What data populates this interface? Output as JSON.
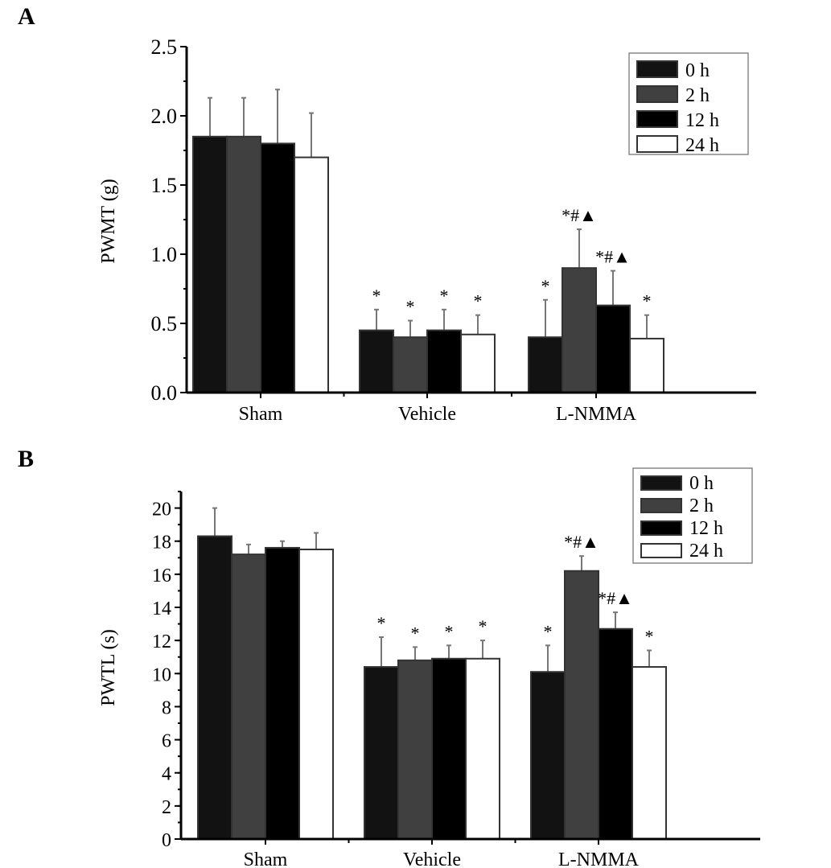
{
  "chart_data": [
    {
      "panel_label": "A",
      "type": "bar",
      "title": "",
      "xlabel": "",
      "ylabel": "PWMT (g)",
      "ylim": [
        0,
        2.5
      ],
      "yticks": [
        "0.0",
        "0.5",
        "1.0",
        "1.5",
        "2.0",
        "2.5"
      ],
      "ytick_values": [
        0,
        0.5,
        1.0,
        1.5,
        2.0,
        2.5
      ],
      "categories": [
        "Sham",
        "Vehicle",
        "L-NMMA"
      ],
      "legend_position": "top-right",
      "series": [
        {
          "name": "0 h",
          "color": "#121212",
          "values": [
            1.85,
            0.45,
            0.4
          ],
          "error_top": [
            2.13,
            0.6,
            0.67
          ],
          "annotations": [
            "",
            "*",
            "*"
          ]
        },
        {
          "name": "2 h",
          "color": "#404040",
          "values": [
            1.85,
            0.4,
            0.9
          ],
          "error_top": [
            2.13,
            0.52,
            1.18
          ],
          "annotations": [
            "",
            "*",
            "*#▲"
          ]
        },
        {
          "name": "12 h",
          "color": "#000000",
          "values": [
            1.8,
            0.45,
            0.63
          ],
          "error_top": [
            2.19,
            0.6,
            0.88
          ],
          "annotations": [
            "",
            "*",
            "*#▲"
          ]
        },
        {
          "name": "24 h",
          "color": "#ffffff",
          "values": [
            1.7,
            0.42,
            0.39
          ],
          "error_top": [
            2.02,
            0.56,
            0.56
          ],
          "annotations": [
            "",
            "*",
            "*"
          ]
        }
      ]
    },
    {
      "panel_label": "B",
      "type": "bar",
      "title": "",
      "xlabel": "",
      "ylabel": "PWTL (s)",
      "ylim": [
        0,
        21
      ],
      "yticks": [
        "0",
        "2",
        "4",
        "6",
        "8",
        "10",
        "12",
        "14",
        "16",
        "18",
        "20"
      ],
      "ytick_values": [
        0,
        2,
        4,
        6,
        8,
        10,
        12,
        14,
        16,
        18,
        20
      ],
      "categories": [
        "Sham",
        "Vehicle",
        "L-NMMA"
      ],
      "legend_position": "top-right",
      "series": [
        {
          "name": "0 h",
          "color": "#121212",
          "values": [
            18.3,
            10.4,
            10.1
          ],
          "error_top": [
            20.0,
            12.2,
            11.7
          ],
          "annotations": [
            "",
            "*",
            "*"
          ]
        },
        {
          "name": "2 h",
          "color": "#404040",
          "values": [
            17.2,
            10.8,
            16.2
          ],
          "error_top": [
            17.8,
            11.6,
            17.1
          ],
          "annotations": [
            "",
            "*",
            "*#▲"
          ]
        },
        {
          "name": "12 h",
          "color": "#000000",
          "values": [
            17.6,
            10.9,
            12.7
          ],
          "error_top": [
            18.0,
            11.7,
            13.7
          ],
          "annotations": [
            "",
            "*",
            "*#▲"
          ]
        },
        {
          "name": "24 h",
          "color": "#ffffff",
          "values": [
            17.5,
            10.9,
            10.4
          ],
          "error_top": [
            18.5,
            12.0,
            11.4
          ],
          "annotations": [
            "",
            "*",
            "*"
          ]
        }
      ]
    }
  ]
}
